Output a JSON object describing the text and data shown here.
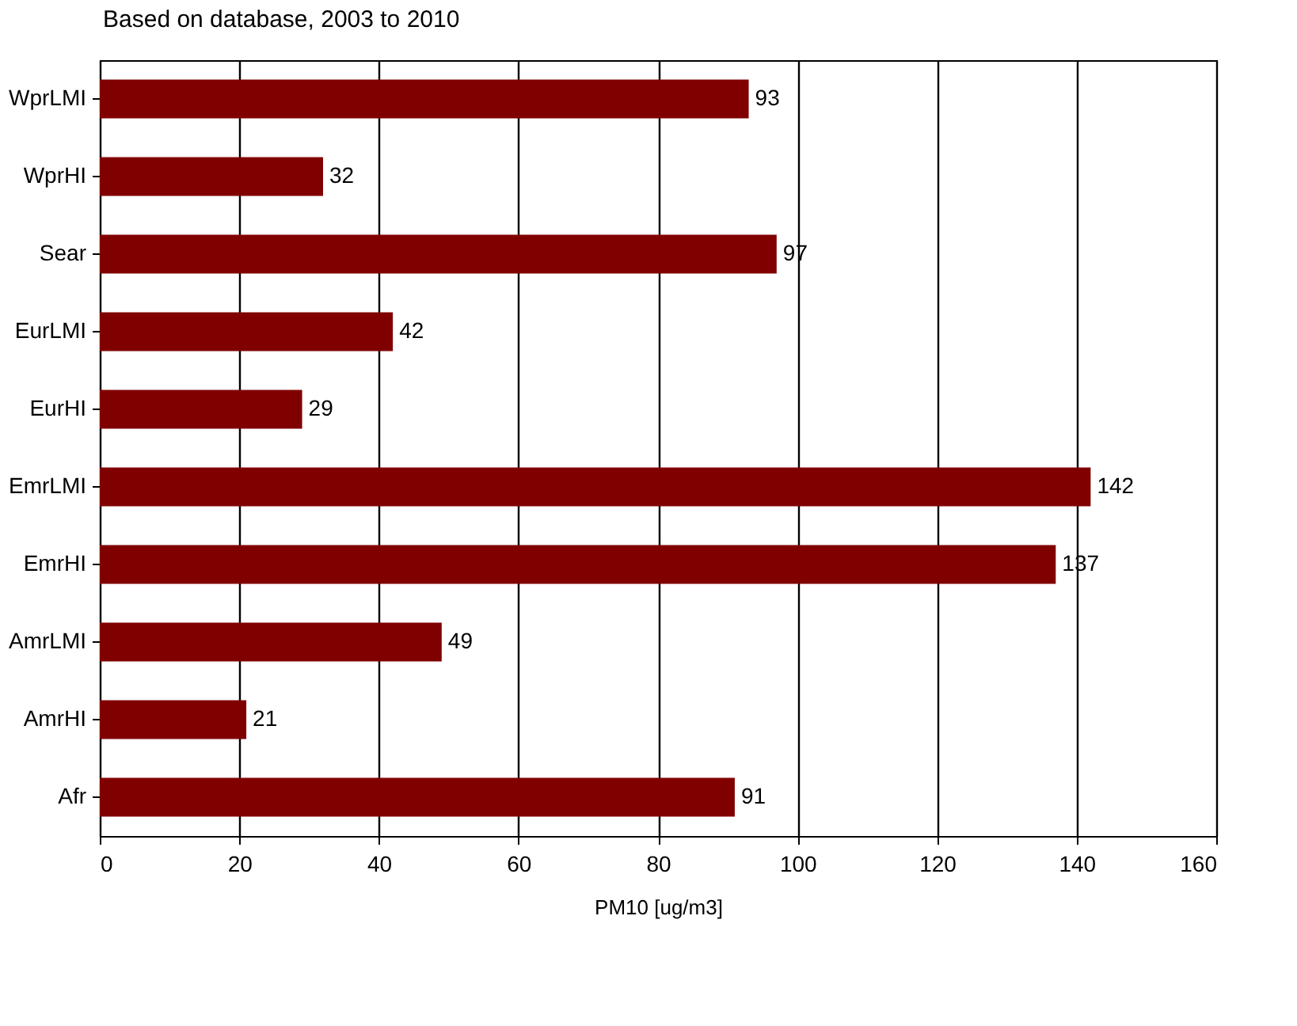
{
  "chart_data": {
    "type": "bar",
    "orientation": "horizontal",
    "subtitle": "Based on database, 2003 to 2010",
    "xlabel": "PM10 [ug/m3]",
    "categories": [
      "WprLMI",
      "WprHI",
      "Sear",
      "EurLMI",
      "EurHI",
      "EmrLMI",
      "EmrHI",
      "AmrLMI",
      "AmrHI",
      "Afr"
    ],
    "series": [
      {
        "color": "#800000",
        "values": [
          93,
          32,
          97,
          42,
          29,
          142,
          137,
          49,
          21,
          91
        ]
      }
    ],
    "xlim": [
      0,
      160
    ],
    "xticks": [
      0,
      20,
      40,
      60,
      80,
      100,
      120,
      140,
      160
    ],
    "grid": "x",
    "data_labels": true
  }
}
